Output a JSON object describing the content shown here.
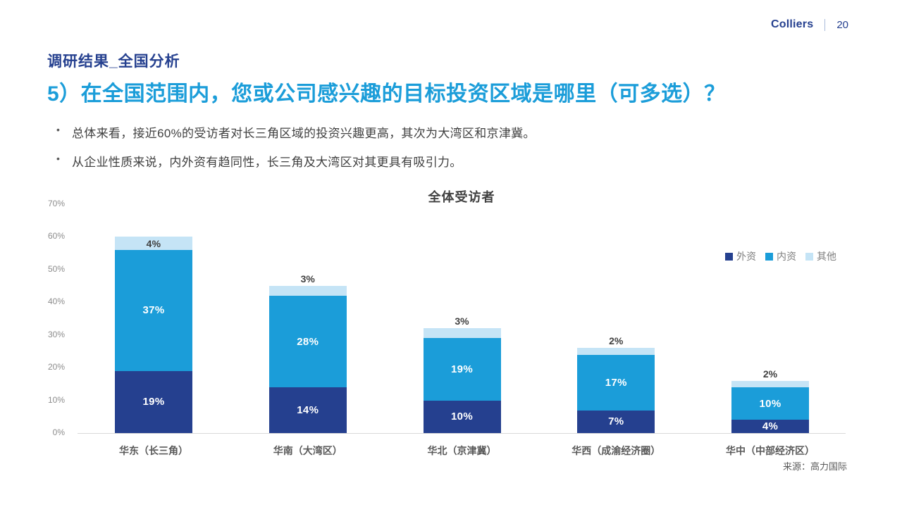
{
  "page": {
    "brand": "Colliers",
    "page_number": "20",
    "section_title": "调研结果_全国分析",
    "heading": "5）在全国范围内，您或公司感兴趣的目标投资区域是哪里（可多选）？",
    "bullets": [
      "总体来看，接近60%的受访者对长三角区域的投资兴趣更高，其次为大湾区和京津冀。",
      "从企业性质来说，内外资有趋同性，长三角及大湾区对其更具有吸引力。"
    ],
    "source": "来源：高力国际"
  },
  "colors": {
    "navy": "#25408F",
    "cyan": "#1B9DD9",
    "light_blue": "#C5E4F6",
    "heading_cyan": "#1B9DD9",
    "body_text": "#404040",
    "axis_text": "#8C8C8C"
  },
  "chart_data": {
    "type": "bar",
    "stacked": true,
    "title": "全体受访者",
    "categories": [
      "华东（长三角）",
      "华南（大湾区）",
      "华北（京津冀）",
      "华西（成渝经济圈）",
      "华中（中部经济区）"
    ],
    "series": [
      {
        "name": "外资",
        "color": "#25408F",
        "label_style": "white",
        "values": [
          19,
          14,
          10,
          7,
          4
        ]
      },
      {
        "name": "内资",
        "color": "#1B9DD9",
        "label_style": "white",
        "values": [
          37,
          28,
          19,
          17,
          10
        ]
      },
      {
        "name": "其他",
        "color": "#C5E4F6",
        "label_style": "dark",
        "values": [
          4,
          3,
          3,
          2,
          2
        ]
      }
    ],
    "totals": [
      60,
      45,
      32,
      26,
      16
    ],
    "xlabel": "",
    "ylabel": "",
    "ylim": [
      0,
      70
    ],
    "y_ticks": [
      0,
      10,
      20,
      30,
      40,
      50,
      60,
      70
    ],
    "y_tick_suffix": "%",
    "gridlines": false,
    "legend_position": "top-right"
  }
}
